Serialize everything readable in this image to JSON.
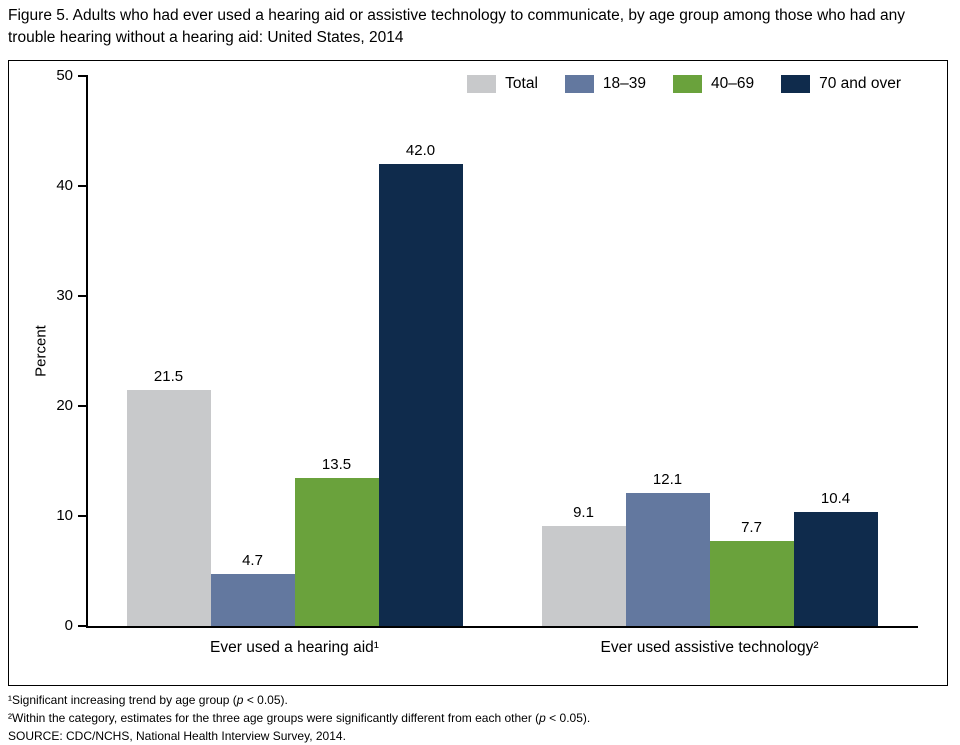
{
  "title": "Figure 5. Adults who had ever used a hearing aid or assistive technology to communicate, by age group among those who had any trouble hearing without a hearing aid: United States, 2014",
  "chart_data": {
    "type": "bar",
    "title": "Figure 5. Adults who had ever used a hearing aid or assistive technology to communicate, by age group among those who had any trouble hearing without a hearing aid: United States, 2014",
    "categories": [
      "Ever used a hearing aid¹",
      "Ever used assistive technology²"
    ],
    "series": [
      {
        "name": "Total",
        "color": "#c8c9cb",
        "values": [
          21.5,
          9.1
        ]
      },
      {
        "name": "18–39",
        "color": "#63789f",
        "values": [
          4.7,
          12.1
        ]
      },
      {
        "name": "40–69",
        "color": "#6aa23c",
        "values": [
          13.5,
          7.7
        ]
      },
      {
        "name": "70 and over",
        "color": "#0f2b4c",
        "values": [
          42.0,
          10.4
        ]
      }
    ],
    "xlabel": "",
    "ylabel": "Percent",
    "ylim": [
      0,
      50
    ],
    "ytick_step": 10,
    "grid": false,
    "legend_position": "top-right",
    "value_labels": true,
    "value_label_decimals": 1
  },
  "footnotes": [
    "¹Significant increasing trend by age group (p < 0.05).",
    "²Within the category, estimates for the three age groups were significantly different from each other (p < 0.05).",
    "SOURCE: CDC/NCHS, National Health Interview Survey, 2014."
  ]
}
